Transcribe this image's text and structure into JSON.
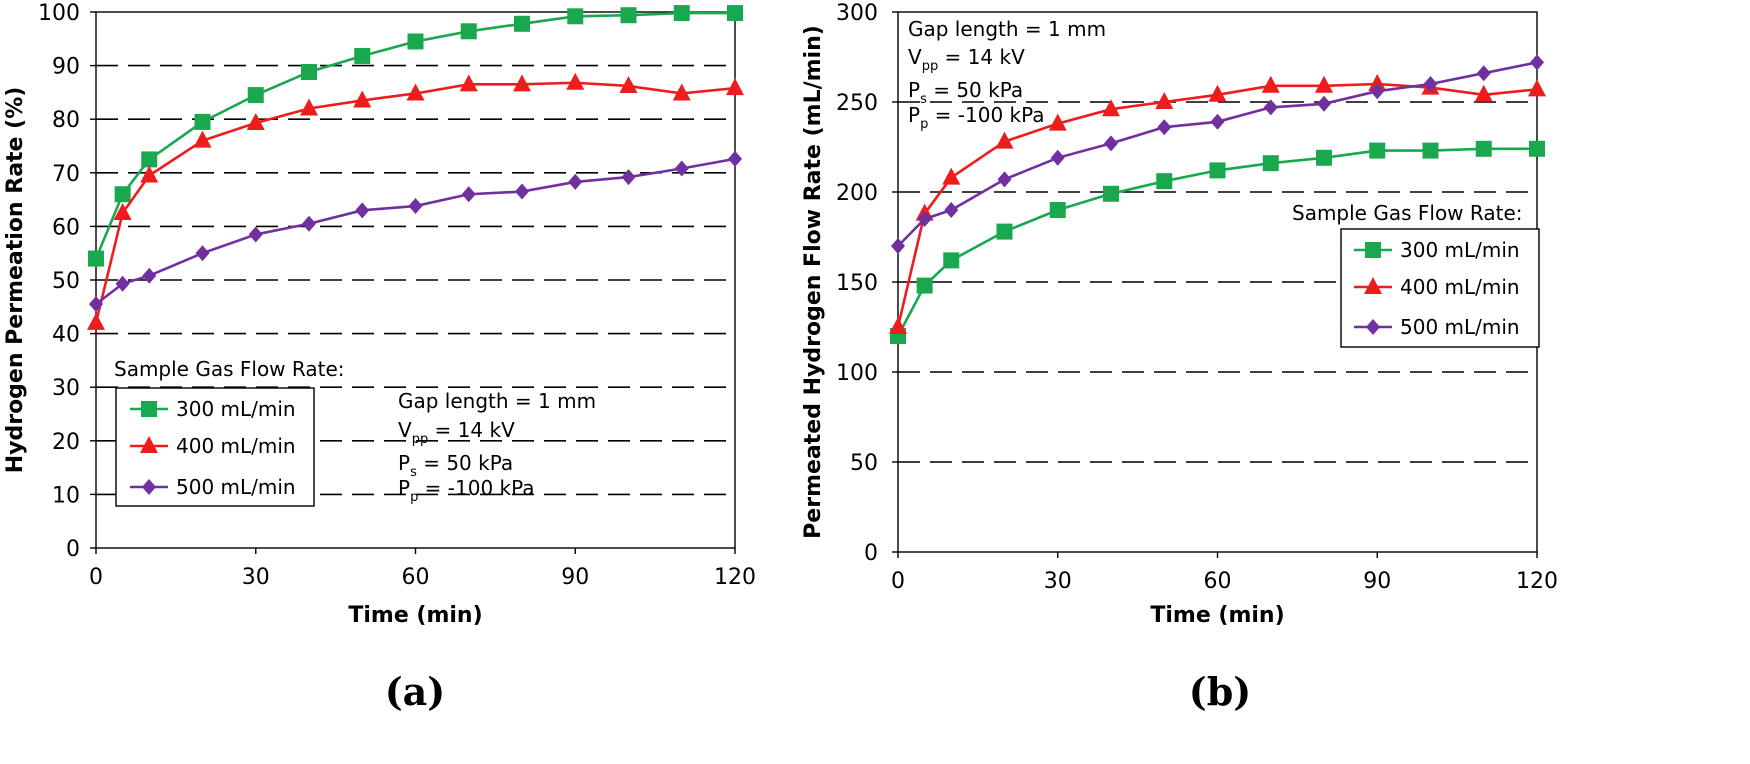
{
  "chart_data": [
    {
      "type": "line",
      "panel_label": "(a)",
      "xlabel": "Time (min)",
      "ylabel": "Hydrogen Permeation Rate (%)",
      "xlim": [
        0,
        120
      ],
      "ylim": [
        0,
        100
      ],
      "xticks": [
        0,
        30,
        60,
        90,
        120
      ],
      "yticks": [
        0,
        10,
        20,
        30,
        40,
        50,
        60,
        70,
        80,
        90,
        100
      ],
      "grid": "horizontal dashed",
      "legend": {
        "title": "Sample Gas Flow Rate:",
        "placement": "bottom-left",
        "entries": [
          "300 mL/min",
          "400 mL/min",
          "500 mL/min"
        ]
      },
      "annotation": [
        {
          "text": "Gap length = 1 mm"
        },
        {
          "main": "V",
          "sub": "pp",
          "rest": " = 14 kV"
        },
        {
          "main": "P",
          "sub": "s",
          "rest": " = 50 kPa"
        },
        {
          "main": "P",
          "sub": "p",
          "rest": " = -100 kPa"
        }
      ],
      "x": [
        0,
        5,
        10,
        20,
        30,
        40,
        50,
        60,
        70,
        80,
        90,
        100,
        110,
        120
      ],
      "series": [
        {
          "name": "300 mL/min",
          "color": "#1aa84f",
          "marker": "square",
          "values": [
            54,
            66,
            72.5,
            79.5,
            84.5,
            88.8,
            91.8,
            94.5,
            96.4,
            97.8,
            99.2,
            99.4,
            99.8,
            99.8
          ]
        },
        {
          "name": "400 mL/min",
          "color": "#ee1c1c",
          "marker": "triangle",
          "values": [
            42,
            62.5,
            69.5,
            76,
            79.3,
            82,
            83.5,
            84.8,
            86.5,
            86.5,
            86.8,
            86.2,
            84.8,
            85.8
          ]
        },
        {
          "name": "500 mL/min",
          "color": "#7030a0",
          "marker": "diamond",
          "values": [
            45.5,
            49.3,
            50.8,
            55,
            58.5,
            60.5,
            63,
            63.8,
            66,
            66.5,
            68.3,
            69.2,
            70.8,
            72.6
          ]
        }
      ]
    },
    {
      "type": "line",
      "panel_label": "(b)",
      "xlabel": "Time (min)",
      "ylabel": "Permeated Hydrogen Flow Rate (mL/min)",
      "xlim": [
        0,
        120
      ],
      "ylim": [
        0,
        300
      ],
      "xticks": [
        0,
        30,
        60,
        90,
        120
      ],
      "yticks": [
        0,
        50,
        100,
        150,
        200,
        250,
        300
      ],
      "grid": "horizontal dashed",
      "legend": {
        "title": "Sample Gas Flow Rate:",
        "placement": "middle-right",
        "entries": [
          "300 mL/min",
          "400 mL/min",
          "500 mL/min"
        ]
      },
      "annotation": [
        {
          "text": "Gap length = 1 mm"
        },
        {
          "main": "V",
          "sub": "pp",
          "rest": " = 14 kV"
        },
        {
          "main": "P",
          "sub": "s",
          "rest": " = 50 kPa"
        },
        {
          "main": "P",
          "sub": "p",
          "rest": " = -100 kPa"
        }
      ],
      "x": [
        0,
        5,
        10,
        20,
        30,
        40,
        50,
        60,
        70,
        80,
        90,
        100,
        110,
        120
      ],
      "series": [
        {
          "name": "300 mL/min",
          "color": "#1aa84f",
          "marker": "square",
          "values": [
            120,
            148,
            162,
            178,
            190,
            199,
            206,
            212,
            216,
            219,
            223,
            223,
            224,
            224
          ]
        },
        {
          "name": "400 mL/min",
          "color": "#ee1c1c",
          "marker": "triangle",
          "values": [
            125,
            188,
            208,
            228,
            238,
            246,
            250,
            254,
            259,
            259,
            260,
            258,
            254,
            257
          ]
        },
        {
          "name": "500 mL/min",
          "color": "#7030a0",
          "marker": "diamond",
          "values": [
            170,
            185,
            190,
            207,
            219,
            227,
            236,
            239,
            247,
            249,
            256,
            260,
            266,
            272
          ]
        }
      ]
    }
  ]
}
